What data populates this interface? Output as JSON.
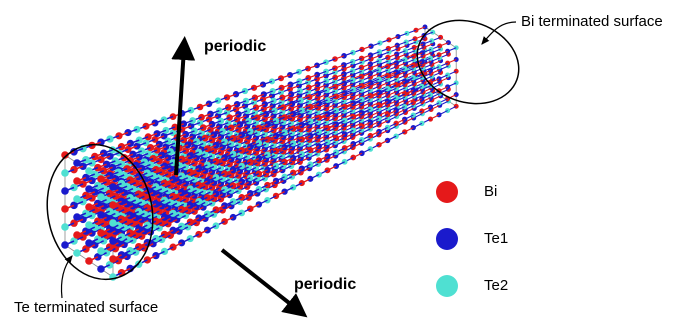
{
  "arrows": [
    {
      "label": "periodic"
    },
    {
      "label": "periodic"
    }
  ],
  "surfaces": [
    {
      "label": "Bi terminated surface"
    },
    {
      "label": "Te terminated surface"
    }
  ],
  "legend": [
    {
      "label": "Bi",
      "color": "#e5191a"
    },
    {
      "label": "Te1",
      "color": "#1a1acc"
    },
    {
      "label": "Te2",
      "color": "#4fe0d2"
    }
  ]
}
